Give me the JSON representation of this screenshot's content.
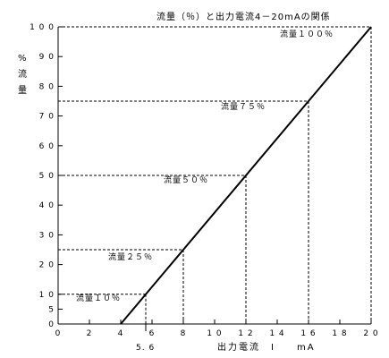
{
  "chart_data": {
    "type": "line",
    "title": "流量（％）と出力電流4－20mAの関係",
    "xlabel": "出力電流　I　　mA",
    "ylabel_chars": [
      "%",
      "流",
      "量"
    ],
    "xlim": [
      0,
      20
    ],
    "ylim": [
      0,
      100
    ],
    "x_ticks": [
      0,
      2,
      4,
      6,
      8,
      10,
      12,
      14,
      16,
      18,
      20
    ],
    "x_tick_labels": [
      "0",
      "2",
      "4",
      "6",
      "8",
      "1 0",
      "1 2",
      "1 4",
      "1 6",
      "1 8",
      "2 0"
    ],
    "y_ticks": [
      0,
      5,
      10,
      20,
      30,
      40,
      50,
      60,
      70,
      80,
      90,
      100
    ],
    "y_tick_labels": [
      "0",
      "5",
      "1 0",
      "2 0",
      "3 0",
      "4 0",
      "5 0",
      "6 0",
      "7 0",
      "8 0",
      "9 0",
      "1 0 0"
    ],
    "grid": false,
    "series": [
      {
        "x": [
          4,
          20
        ],
        "y": [
          0,
          100
        ],
        "color": "#000000"
      }
    ],
    "reference_points": [
      {
        "x": 5.6,
        "y": 10,
        "label": "流量１０％"
      },
      {
        "x": 8,
        "y": 25,
        "label": "流量２５％"
      },
      {
        "x": 12,
        "y": 50,
        "label": "流量５０％"
      },
      {
        "x": 16,
        "y": 75,
        "label": "流量７５％"
      },
      {
        "x": 20,
        "y": 100,
        "label": "流量１００％"
      }
    ],
    "extra_x_annotation": {
      "x": 5.6,
      "label": "5. 6"
    }
  }
}
